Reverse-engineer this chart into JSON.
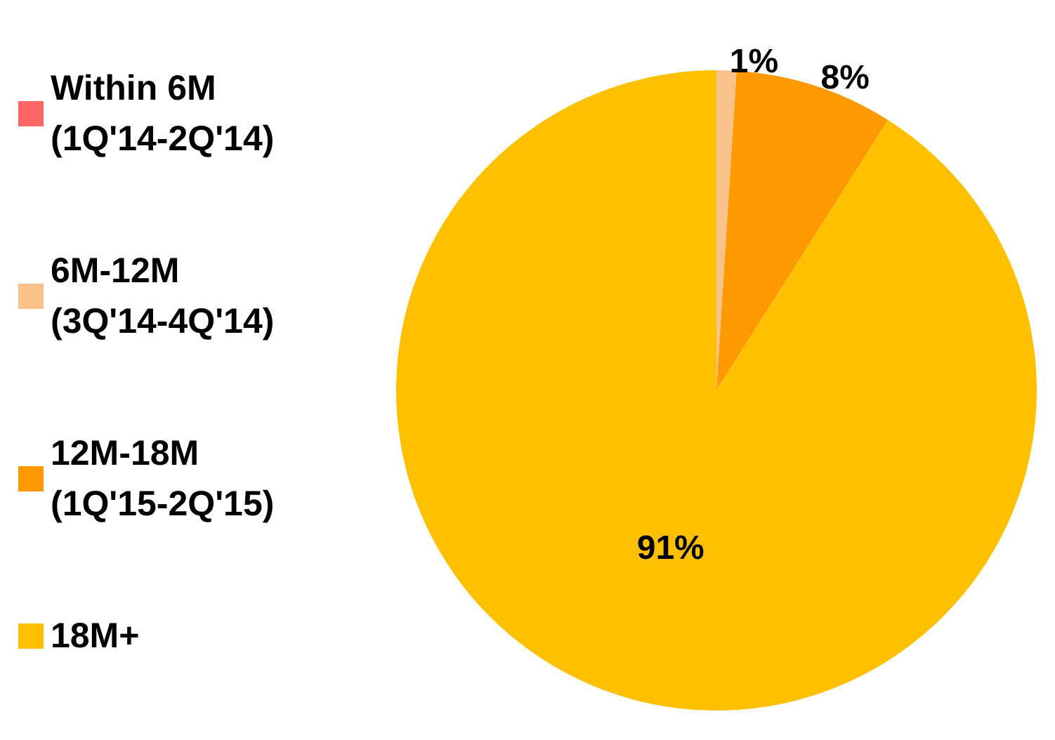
{
  "chart_data": {
    "type": "pie",
    "categories": [
      "Within 6M\n(1Q'14-2Q'14)",
      "6M-12M\n(3Q'14-4Q'14)",
      "12M-18M\n(1Q'15-2Q'15)",
      "18M+"
    ],
    "values": [
      0,
      1,
      8,
      91
    ],
    "colors": [
      "#ff6666",
      "#f8c38a",
      "#ff9900",
      "#ffc000"
    ],
    "value_labels": [
      null,
      "1%",
      "8%",
      "91%"
    ],
    "legend": "left"
  }
}
